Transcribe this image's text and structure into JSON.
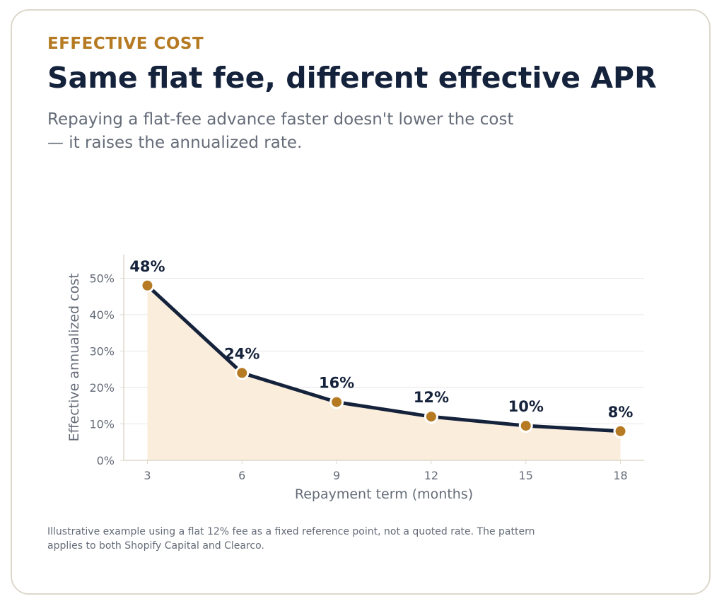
{
  "header": {
    "eyebrow": "EFFECTIVE COST",
    "title": "Same flat fee, different effective APR",
    "subtitle": "Repaying a flat-fee advance faster doesn't lower the cost — it raises the annualized rate."
  },
  "footnote": "Illustrative example using a flat 12% fee as a fixed reference point, not a quoted rate. The pattern applies to both Shopify Capital and Clearco.",
  "colors": {
    "line": "#15223b",
    "marker": "#b57a22",
    "area": "#faeddb",
    "grid": "#e6e6e6",
    "axis": "#ddd8cc"
  },
  "chart_data": {
    "type": "line",
    "x": [
      3,
      6,
      9,
      12,
      15,
      18
    ],
    "x_tick_labels": [
      "3",
      "6",
      "9",
      "12",
      "15",
      "18"
    ],
    "values": [
      48,
      24,
      16,
      12,
      9.5,
      8
    ],
    "data_labels": [
      "48%",
      "24%",
      "16%",
      "12%",
      "10%",
      "8%"
    ],
    "xlabel": "Repayment term (months)",
    "ylabel": "Effective annualized cost",
    "y_ticks": [
      0,
      10,
      20,
      30,
      40,
      50
    ],
    "y_tick_labels": [
      "0%",
      "10%",
      "20%",
      "30%",
      "40%",
      "50%"
    ],
    "xlim": [
      2.25,
      18.75
    ],
    "ylim": [
      0,
      56.5
    ],
    "grid": true,
    "area_fill": true
  }
}
